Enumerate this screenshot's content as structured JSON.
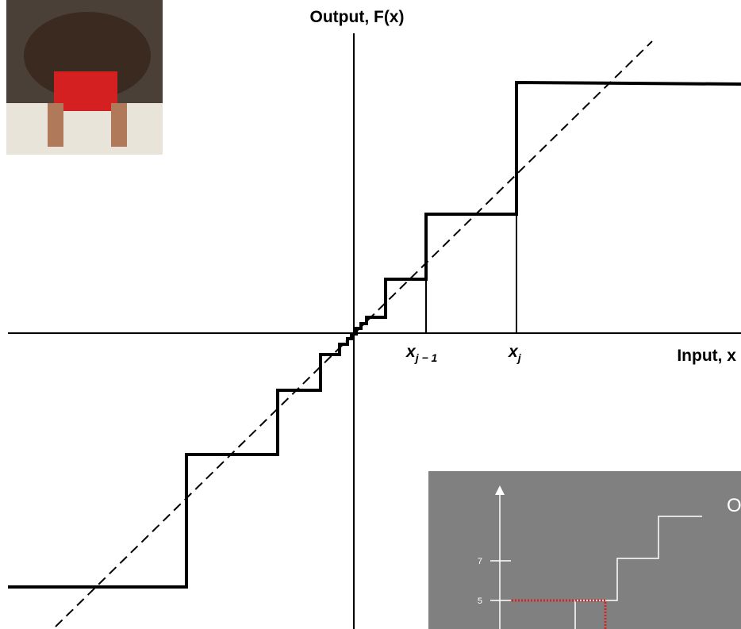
{
  "axes": {
    "y_label": "Output, F(x)",
    "x_label": "Input, x"
  },
  "markers": [
    {
      "base": "x",
      "sub": "j − 1"
    },
    {
      "base": "x",
      "sub": "j"
    }
  ],
  "inset": {
    "ticks": [
      7,
      5
    ],
    "label": "O"
  }
}
